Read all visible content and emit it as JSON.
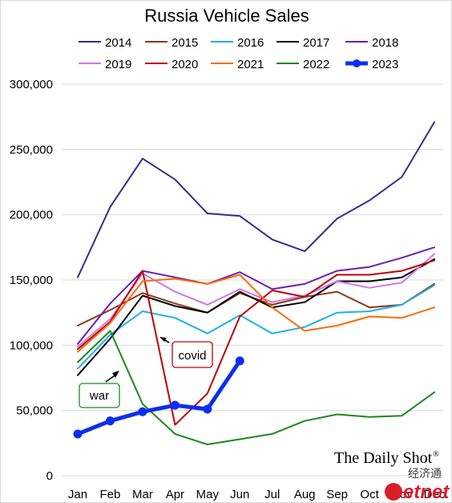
{
  "chart_data": {
    "type": "line",
    "title": "Russia Vehicle Sales",
    "categories": [
      "Jan",
      "Feb",
      "Mar",
      "Apr",
      "May",
      "Jun",
      "Jul",
      "Aug",
      "Sep",
      "Oct",
      "Nov",
      "Dec"
    ],
    "ylim": [
      0,
      300000
    ],
    "yticks": [
      "0",
      "50,000",
      "100,000",
      "150,000",
      "200,000",
      "250,000",
      "300,000"
    ],
    "grid": true,
    "legend_position": "top",
    "series": [
      {
        "name": "2014",
        "color": "#2f2f8f",
        "values": [
          152000,
          206000,
          243000,
          227000,
          201000,
          199000,
          181000,
          172000,
          197000,
          211000,
          229000,
          271000
        ]
      },
      {
        "name": "2015",
        "color": "#8b3a1a",
        "values": [
          115000,
          127000,
          140000,
          132000,
          125000,
          140000,
          131000,
          137000,
          141000,
          129000,
          131000,
          147000
        ]
      },
      {
        "name": "2016",
        "color": "#1fb0e8",
        "values": [
          82000,
          108000,
          126000,
          121000,
          109000,
          123000,
          109000,
          114000,
          125000,
          126000,
          131000,
          146000
        ]
      },
      {
        "name": "2017",
        "color": "#000000",
        "values": [
          77000,
          105000,
          138000,
          130000,
          125000,
          141000,
          129000,
          133000,
          149000,
          149000,
          152000,
          166000
        ]
      },
      {
        "name": "2018",
        "color": "#6a1fb0",
        "values": [
          101000,
          132000,
          157000,
          152000,
          147000,
          156000,
          143000,
          147000,
          157000,
          160000,
          167000,
          175000
        ]
      },
      {
        "name": "2019",
        "color": "#cc77ef",
        "values": [
          99000,
          120000,
          155000,
          141000,
          131000,
          143000,
          133000,
          138000,
          149000,
          144000,
          148000,
          170000
        ]
      },
      {
        "name": "2020",
        "color": "#c00000",
        "values": [
          97000,
          118000,
          157000,
          39000,
          63000,
          122000,
          142000,
          137000,
          154000,
          154000,
          157000,
          165000
        ]
      },
      {
        "name": "2021",
        "color": "#ff6a00",
        "values": [
          95000,
          117000,
          149000,
          151000,
          147000,
          154000,
          129000,
          111000,
          115000,
          122000,
          121000,
          129000
        ]
      },
      {
        "name": "2022",
        "color": "#1a8a1a",
        "values": [
          87000,
          111000,
          55000,
          32000,
          24000,
          28000,
          32000,
          42000,
          47000,
          45000,
          46000,
          64000
        ]
      },
      {
        "name": "2023",
        "color": "#0a2ff0",
        "values": [
          32000,
          42000,
          49000,
          54000,
          51000,
          88000,
          null,
          null,
          null,
          null,
          null,
          null
        ]
      }
    ],
    "annotations": [
      {
        "label": "covid"
      },
      {
        "label": "war"
      }
    ]
  },
  "source": {
    "brand": "The Daily Shot",
    "registered": "®",
    "cn": "经济通",
    "watermark": "etnet"
  }
}
